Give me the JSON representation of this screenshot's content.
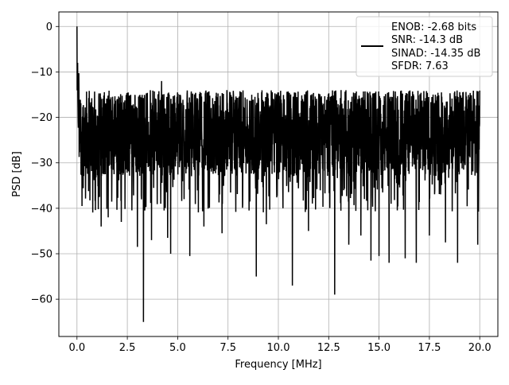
{
  "chart_data": {
    "type": "line",
    "xlabel": "Frequency [MHz]",
    "ylabel": "PSD [dB]",
    "xlim": [
      -0.9,
      20.9
    ],
    "ylim": [
      -68.2,
      3.2
    ],
    "grid": true,
    "x_ticks": [
      0.0,
      2.5,
      5.0,
      7.5,
      10.0,
      12.5,
      15.0,
      17.5,
      20.0
    ],
    "x_tick_labels": [
      "0.0",
      "2.5",
      "5.0",
      "7.5",
      "10.0",
      "12.5",
      "15.0",
      "17.5",
      "20.0"
    ],
    "y_ticks": [
      0,
      -10,
      -20,
      -30,
      -40,
      -50,
      -60
    ],
    "y_tick_labels": [
      "0",
      "−10",
      "−20",
      "−30",
      "−40",
      "−50",
      "−60"
    ],
    "legend": {
      "position": "top-right",
      "lines": [
        "ENOB: -2.68 bits",
        "SNR: -14.3 dB",
        "SINAD: -14.35 dB",
        "SFDR: 7.63"
      ]
    },
    "series": [
      {
        "color": "#000000",
        "x_range": [
          0.0,
          20.0
        ],
        "dc_peak": {
          "x": 0.0,
          "y": 0.0
        },
        "noise_floor_band": [
          -33.0,
          -14.0
        ],
        "minima": [
          {
            "x": 0.25,
            "y": -39.5
          },
          {
            "x": 1.2,
            "y": -44.0
          },
          {
            "x": 1.55,
            "y": -42.0
          },
          {
            "x": 2.2,
            "y": -43.0
          },
          {
            "x": 3.0,
            "y": -48.5
          },
          {
            "x": 3.3,
            "y": -65.0
          },
          {
            "x": 3.7,
            "y": -47.0
          },
          {
            "x": 4.2,
            "y": -40.5
          },
          {
            "x": 4.5,
            "y": -46.5
          },
          {
            "x": 4.65,
            "y": -50.0
          },
          {
            "x": 5.6,
            "y": -50.5
          },
          {
            "x": 6.3,
            "y": -44.0
          },
          {
            "x": 7.2,
            "y": -45.5
          },
          {
            "x": 8.9,
            "y": -55.0
          },
          {
            "x": 9.4,
            "y": -43.5
          },
          {
            "x": 10.7,
            "y": -57.0
          },
          {
            "x": 11.5,
            "y": -45.0
          },
          {
            "x": 12.8,
            "y": -59.0
          },
          {
            "x": 13.5,
            "y": -48.0
          },
          {
            "x": 14.1,
            "y": -46.0
          },
          {
            "x": 14.6,
            "y": -51.5
          },
          {
            "x": 15.0,
            "y": -50.5
          },
          {
            "x": 15.5,
            "y": -52.0
          },
          {
            "x": 16.3,
            "y": -51.0
          },
          {
            "x": 16.85,
            "y": -52.0
          },
          {
            "x": 17.5,
            "y": -46.0
          },
          {
            "x": 18.3,
            "y": -47.5
          },
          {
            "x": 18.9,
            "y": -52.0
          },
          {
            "x": 19.9,
            "y": -48.0
          }
        ],
        "maxima": [
          {
            "x": 0.03,
            "y": -8.0
          },
          {
            "x": 4.2,
            "y": -12.0
          },
          {
            "x": 5.1,
            "y": -15.0
          },
          {
            "x": 7.6,
            "y": -14.5
          },
          {
            "x": 10.0,
            "y": -14.5
          },
          {
            "x": 17.8,
            "y": -15.0
          },
          {
            "x": 18.1,
            "y": -14.5
          }
        ]
      }
    ]
  }
}
